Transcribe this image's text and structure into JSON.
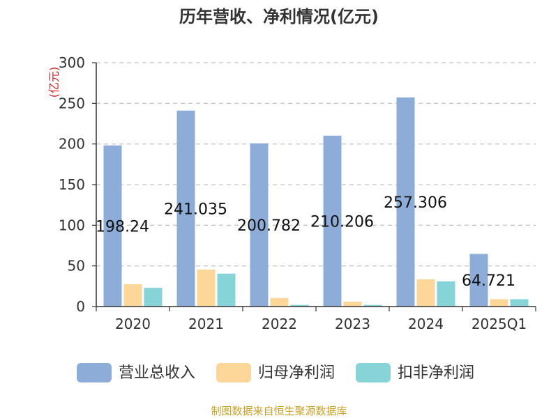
{
  "chart_data": {
    "type": "bar",
    "title": "历年营收、净利情况(亿元)",
    "ylabel": "(亿元)",
    "ylim": [
      0,
      300
    ],
    "yticks": [
      "0",
      "50",
      "100",
      "150",
      "200",
      "250",
      "300"
    ],
    "categories": [
      "2020",
      "2021",
      "2022",
      "2023",
      "2024",
      "2025Q1"
    ],
    "series": [
      {
        "name": "营业总收入",
        "color": "#8eacd8",
        "values": [
          198.24,
          241.035,
          200.782,
          210.206,
          257.306,
          64.721
        ]
      },
      {
        "name": "归母净利润",
        "color": "#fcd799",
        "values": [
          27.5,
          45.5,
          10.5,
          6.0,
          33.5,
          9.0
        ]
      },
      {
        "name": "扣非净利润",
        "color": "#86d3d8",
        "values": [
          23.0,
          40.5,
          2.0,
          2.0,
          31.0,
          9.0
        ]
      }
    ],
    "data_labels": [
      "198.24",
      "241.035",
      "200.782",
      "210.206",
      "257.306",
      "64.721"
    ],
    "grid": true,
    "legend_position": "bottom"
  },
  "source_text": "制图数据来自恒生聚源数据库"
}
